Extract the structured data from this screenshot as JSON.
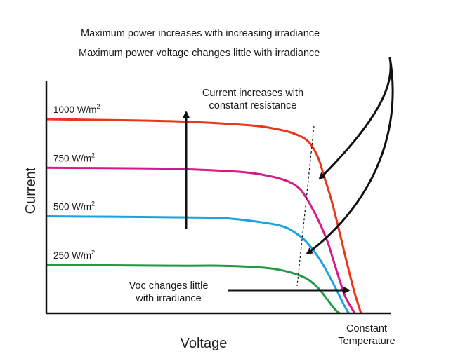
{
  "chart_data": {
    "type": "line",
    "title": "",
    "xlabel": "Voltage",
    "ylabel": "Current",
    "grid": false,
    "series": [
      {
        "name": "1000 W/m2",
        "label_base": "1000 W/m",
        "label_sup": "2",
        "color": "#e8361b",
        "points": [
          [
            0,
            100
          ],
          [
            40,
            99
          ],
          [
            65,
            97
          ],
          [
            75,
            95
          ],
          [
            82,
            92
          ],
          [
            86,
            88
          ],
          [
            89,
            80
          ],
          [
            91,
            70
          ],
          [
            93,
            60
          ],
          [
            95,
            48
          ],
          [
            97,
            35
          ],
          [
            99,
            22
          ],
          [
            101,
            10
          ],
          [
            103,
            0
          ]
        ]
      },
      {
        "name": "750 W/m2",
        "label_base": "750 W/m",
        "label_sup": "2",
        "color": "#d6198a",
        "points": [
          [
            0,
            75
          ],
          [
            40,
            74.5
          ],
          [
            62,
            73
          ],
          [
            72,
            71
          ],
          [
            79,
            68
          ],
          [
            83,
            64
          ],
          [
            86,
            57
          ],
          [
            89,
            48
          ],
          [
            92,
            37
          ],
          [
            94,
            27
          ],
          [
            96,
            17
          ],
          [
            98,
            8
          ],
          [
            101,
            0
          ]
        ]
      },
      {
        "name": "500 W/m2",
        "label_base": "500 W/m",
        "label_sup": "2",
        "color": "#1aa3e0",
        "points": [
          [
            0,
            50
          ],
          [
            40,
            49.5
          ],
          [
            58,
            49
          ],
          [
            70,
            47
          ],
          [
            77,
            45
          ],
          [
            81,
            42
          ],
          [
            85,
            37
          ],
          [
            89,
            29
          ],
          [
            92,
            21
          ],
          [
            95,
            12
          ],
          [
            97.5,
            4
          ],
          [
            99,
            0
          ]
        ]
      },
      {
        "name": "250 W/m2",
        "label_base": "250 W/m",
        "label_sup": "2",
        "color": "#1f9a45",
        "points": [
          [
            0,
            25
          ],
          [
            40,
            24.5
          ],
          [
            56,
            24.5
          ],
          [
            66,
            24
          ],
          [
            74,
            23
          ],
          [
            80,
            21
          ],
          [
            85,
            18
          ],
          [
            89,
            13
          ],
          [
            92,
            7
          ],
          [
            94.5,
            2
          ],
          [
            96,
            0
          ]
        ]
      }
    ],
    "xlim": [
      0,
      110
    ],
    "ylim": [
      0,
      110
    ],
    "annotations": {
      "max_power_irradiance": "Maximum power increases with increasing irradiance",
      "max_power_voltage": "Maximum power voltage changes little with irradiance",
      "current_line1": "Current increases with",
      "current_line2": "constant resistance",
      "voc_line1": "Voc changes little",
      "voc_line2": "with irradiance",
      "constant": "Constant",
      "temperature": "Temperature"
    }
  }
}
